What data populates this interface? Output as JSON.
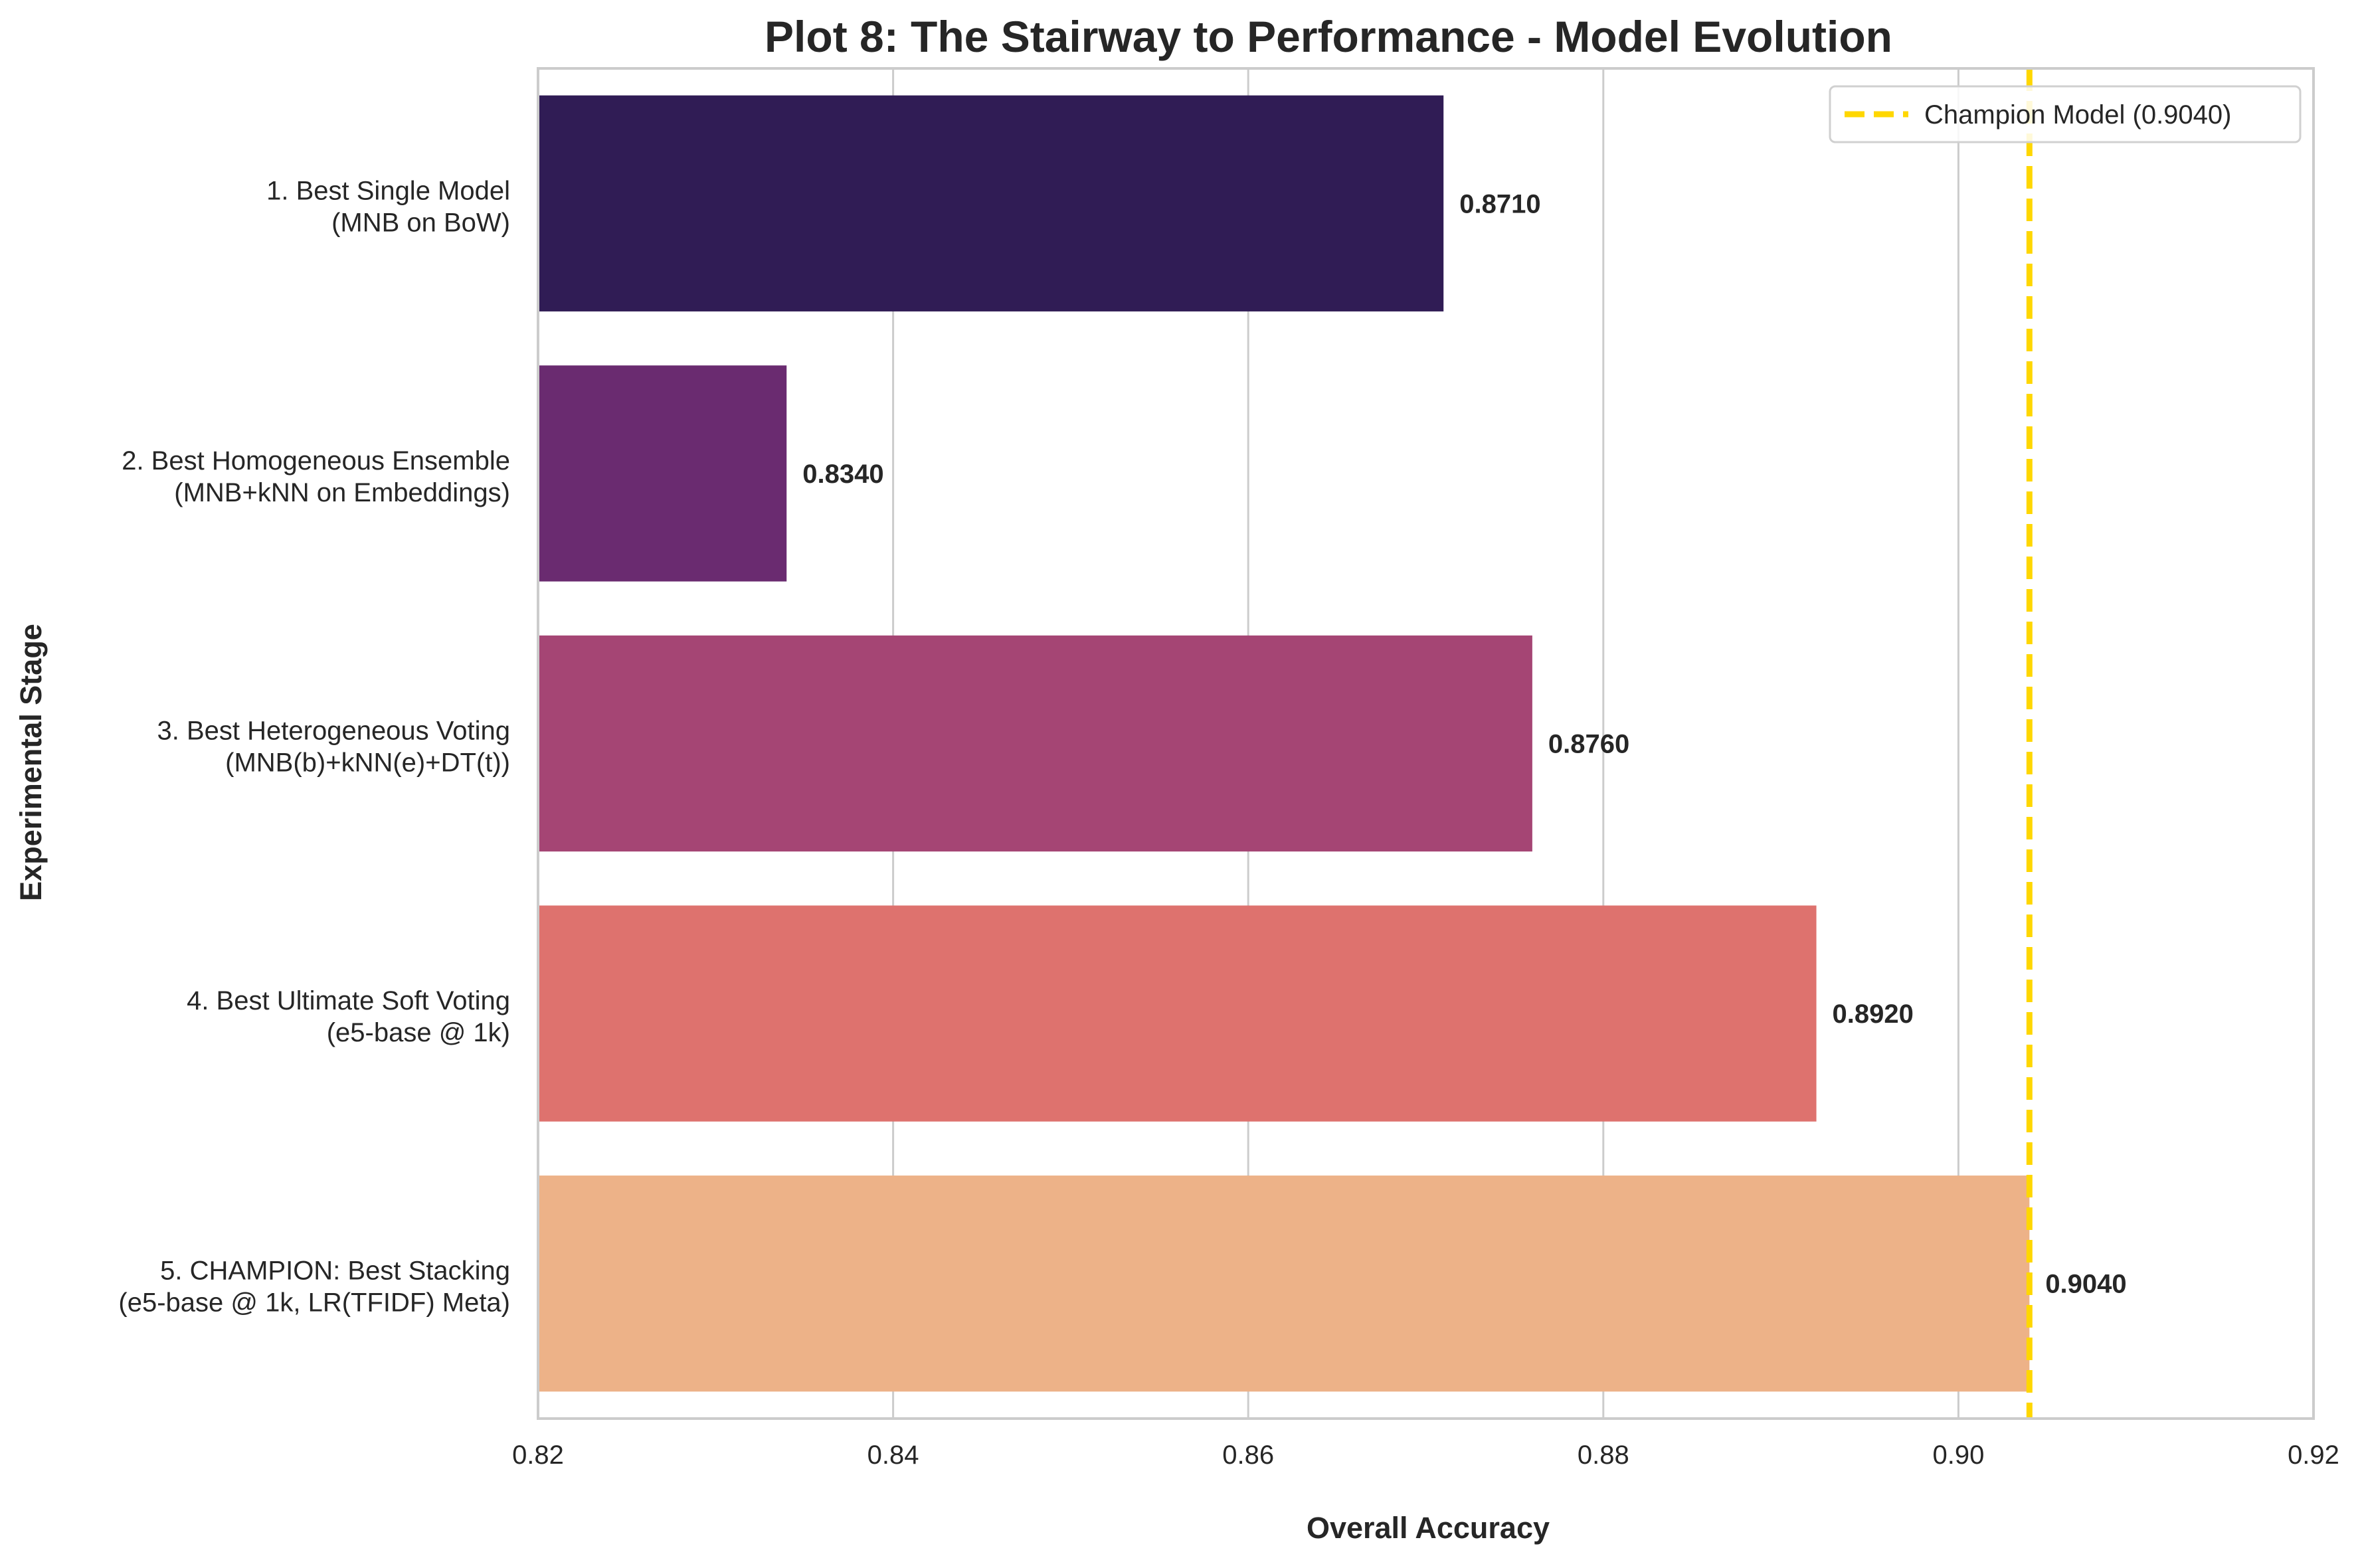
{
  "chart_data": {
    "type": "bar",
    "orientation": "horizontal",
    "title": "Plot 8: The Stairway to Performance - Model Evolution",
    "xlabel": "Overall Accuracy",
    "ylabel": "Experimental Stage",
    "xlim": [
      0.82,
      0.92
    ],
    "xticks": [
      "0.82",
      "0.84",
      "0.86",
      "0.88",
      "0.90",
      "0.92"
    ],
    "grid": "vertical",
    "legend_position": "top-right",
    "categories": [
      [
        "1. Best Single Model",
        "(MNB on BoW)"
      ],
      [
        "2. Best Homogeneous Ensemble",
        "(MNB+kNN on Embeddings)"
      ],
      [
        "3. Best Heterogeneous Voting",
        "(MNB(b)+kNN(e)+DT(t))"
      ],
      [
        "4. Best Ultimate Soft Voting",
        "(e5-base @ 1k)"
      ],
      [
        "5. CHAMPION: Best Stacking",
        "(e5-base @ 1k, LR(TFIDF) Meta)"
      ]
    ],
    "values": [
      0.871,
      0.834,
      0.876,
      0.892,
      0.904
    ],
    "value_labels": [
      "0.8710",
      "0.8340",
      "0.8760",
      "0.8920",
      "0.9040"
    ],
    "colors": [
      "#301c55",
      "#6a2b70",
      "#a54574",
      "#de726e",
      "#edb288"
    ],
    "reference_line": {
      "value": 0.904,
      "label": "Champion Model (0.9040)",
      "color": "#ffd700",
      "style": "dashed"
    }
  }
}
